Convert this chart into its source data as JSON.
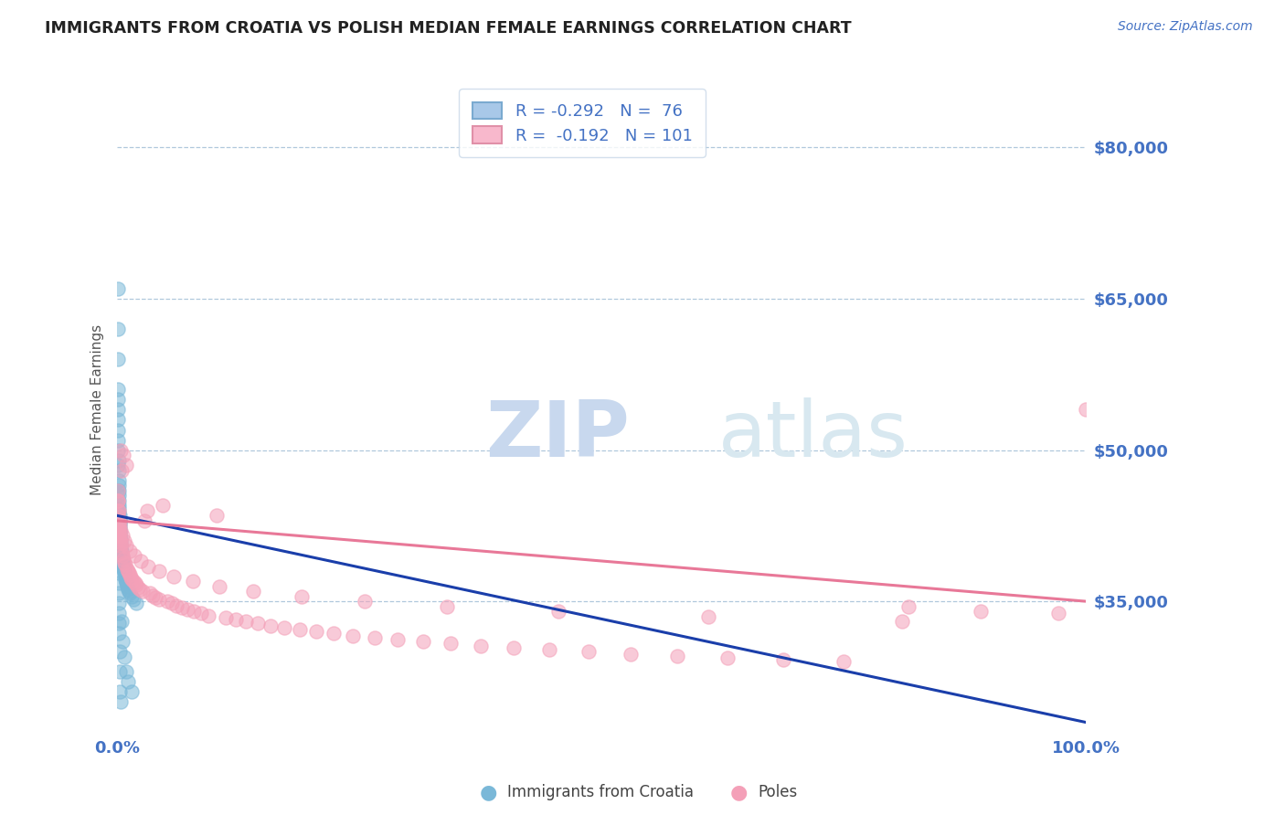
{
  "title": "IMMIGRANTS FROM CROATIA VS POLISH MEDIAN FEMALE EARNINGS CORRELATION CHART",
  "source": "Source: ZipAtlas.com",
  "ylabel": "Median Female Earnings",
  "yticks": [
    35000,
    50000,
    65000,
    80000
  ],
  "ytick_labels": [
    "$35,000",
    "$50,000",
    "$65,000",
    "$80,000"
  ],
  "ylim": [
    22000,
    86000
  ],
  "xlim": [
    0.0,
    100.0
  ],
  "xtick_positions": [
    0.0,
    100.0
  ],
  "xtick_labels": [
    "0.0%",
    "100.0%"
  ],
  "croatia_color": "#7ab8d8",
  "poles_color": "#f4a0b8",
  "croatia_trend_color": "#1a3eaa",
  "poles_trend_color": "#e87898",
  "background_color": "#ffffff",
  "grid_color": "#b0c8dc",
  "title_color": "#222222",
  "tick_color": "#4472c4",
  "source_color": "#4472c4",
  "watermark_color": "#dde8f5",
  "legend_r1": "R = -0.292   N =  76",
  "legend_r2": "R =  -0.192   N = 101",
  "legend_patch1_face": "#a8c8e8",
  "legend_patch1_edge": "#7aaad0",
  "legend_patch2_face": "#f8b8cc",
  "legend_patch2_edge": "#e090a8",
  "bottom_label1": "Immigrants from Croatia",
  "bottom_label2": "Poles",
  "croatia_x": [
    0.05,
    0.06,
    0.07,
    0.08,
    0.09,
    0.1,
    0.11,
    0.12,
    0.13,
    0.14,
    0.15,
    0.16,
    0.17,
    0.18,
    0.19,
    0.2,
    0.21,
    0.22,
    0.23,
    0.24,
    0.25,
    0.26,
    0.27,
    0.28,
    0.29,
    0.3,
    0.32,
    0.35,
    0.38,
    0.4,
    0.42,
    0.45,
    0.48,
    0.5,
    0.55,
    0.6,
    0.65,
    0.7,
    0.75,
    0.8,
    0.85,
    0.9,
    0.95,
    1.0,
    1.1,
    1.2,
    1.3,
    1.5,
    1.7,
    2.0,
    0.05,
    0.06,
    0.07,
    0.08,
    0.09,
    0.1,
    0.11,
    0.12,
    0.13,
    0.14,
    0.15,
    0.16,
    0.17,
    0.18,
    0.19,
    0.2,
    0.22,
    0.24,
    0.28,
    0.35,
    0.42,
    0.55,
    0.7,
    0.9,
    1.1,
    1.5
  ],
  "croatia_y": [
    66000,
    62000,
    59000,
    56000,
    54000,
    52000,
    50000,
    49000,
    48000,
    47000,
    46500,
    46000,
    45500,
    45000,
    44500,
    44200,
    43800,
    43500,
    43200,
    43000,
    42800,
    42500,
    42200,
    42000,
    41800,
    41500,
    41200,
    40800,
    40500,
    40200,
    40000,
    39800,
    39500,
    39200,
    38800,
    38500,
    38200,
    38000,
    37800,
    37500,
    37200,
    37000,
    36800,
    36500,
    36200,
    36000,
    35800,
    35500,
    35200,
    34800,
    55000,
    53000,
    51000,
    48500,
    46000,
    44000,
    42000,
    40500,
    39000,
    37800,
    36800,
    35800,
    34800,
    33800,
    32800,
    31800,
    30000,
    28000,
    26000,
    25000,
    33000,
    31000,
    29500,
    28000,
    27000,
    26000
  ],
  "poles_x": [
    0.05,
    0.07,
    0.09,
    0.11,
    0.13,
    0.15,
    0.17,
    0.19,
    0.21,
    0.23,
    0.26,
    0.29,
    0.32,
    0.36,
    0.4,
    0.44,
    0.49,
    0.54,
    0.6,
    0.66,
    0.73,
    0.8,
    0.88,
    0.97,
    1.07,
    1.17,
    1.28,
    1.4,
    1.53,
    1.67,
    1.82,
    1.99,
    2.17,
    2.37,
    2.58,
    2.82,
    3.07,
    3.35,
    3.65,
    3.98,
    4.34,
    4.73,
    5.15,
    5.62,
    6.12,
    6.68,
    7.28,
    7.94,
    8.65,
    9.43,
    10.28,
    11.21,
    12.22,
    13.32,
    14.52,
    15.83,
    17.25,
    18.81,
    20.5,
    22.35,
    24.36,
    26.55,
    28.95,
    31.56,
    34.41,
    37.52,
    40.91,
    44.6,
    48.62,
    53.01,
    57.8,
    63.02,
    68.72,
    74.94,
    81.71,
    89.09,
    97.12,
    100.0,
    0.08,
    0.12,
    0.18,
    0.25,
    0.35,
    0.5,
    0.7,
    0.95,
    1.3,
    1.75,
    2.4,
    3.2,
    4.3,
    5.8,
    7.8,
    10.5,
    14.0,
    19.0,
    25.5,
    34.0,
    45.5,
    61.0,
    81.0
  ],
  "poles_y": [
    46000,
    45000,
    44000,
    43500,
    43000,
    42500,
    42200,
    42000,
    41800,
    41500,
    41200,
    41000,
    40800,
    40500,
    50000,
    48000,
    39800,
    39500,
    39200,
    49500,
    38800,
    38600,
    48500,
    38200,
    38000,
    37800,
    37600,
    37400,
    37200,
    37000,
    36800,
    36600,
    36400,
    36200,
    36000,
    43000,
    44000,
    35800,
    35600,
    35400,
    35200,
    44500,
    35000,
    34800,
    34600,
    34400,
    34200,
    34000,
    33800,
    33600,
    43500,
    33400,
    33200,
    33000,
    32800,
    32600,
    32400,
    32200,
    32000,
    31800,
    31600,
    31400,
    31200,
    31000,
    30800,
    30600,
    30400,
    30200,
    30000,
    29800,
    29600,
    29400,
    29200,
    29000,
    34500,
    34000,
    33800,
    54000,
    45000,
    44000,
    43000,
    42500,
    42000,
    41500,
    41000,
    40500,
    40000,
    39500,
    39000,
    38500,
    38000,
    37500,
    37000,
    36500,
    36000,
    35500,
    35000,
    34500,
    34000,
    33500,
    33000
  ]
}
